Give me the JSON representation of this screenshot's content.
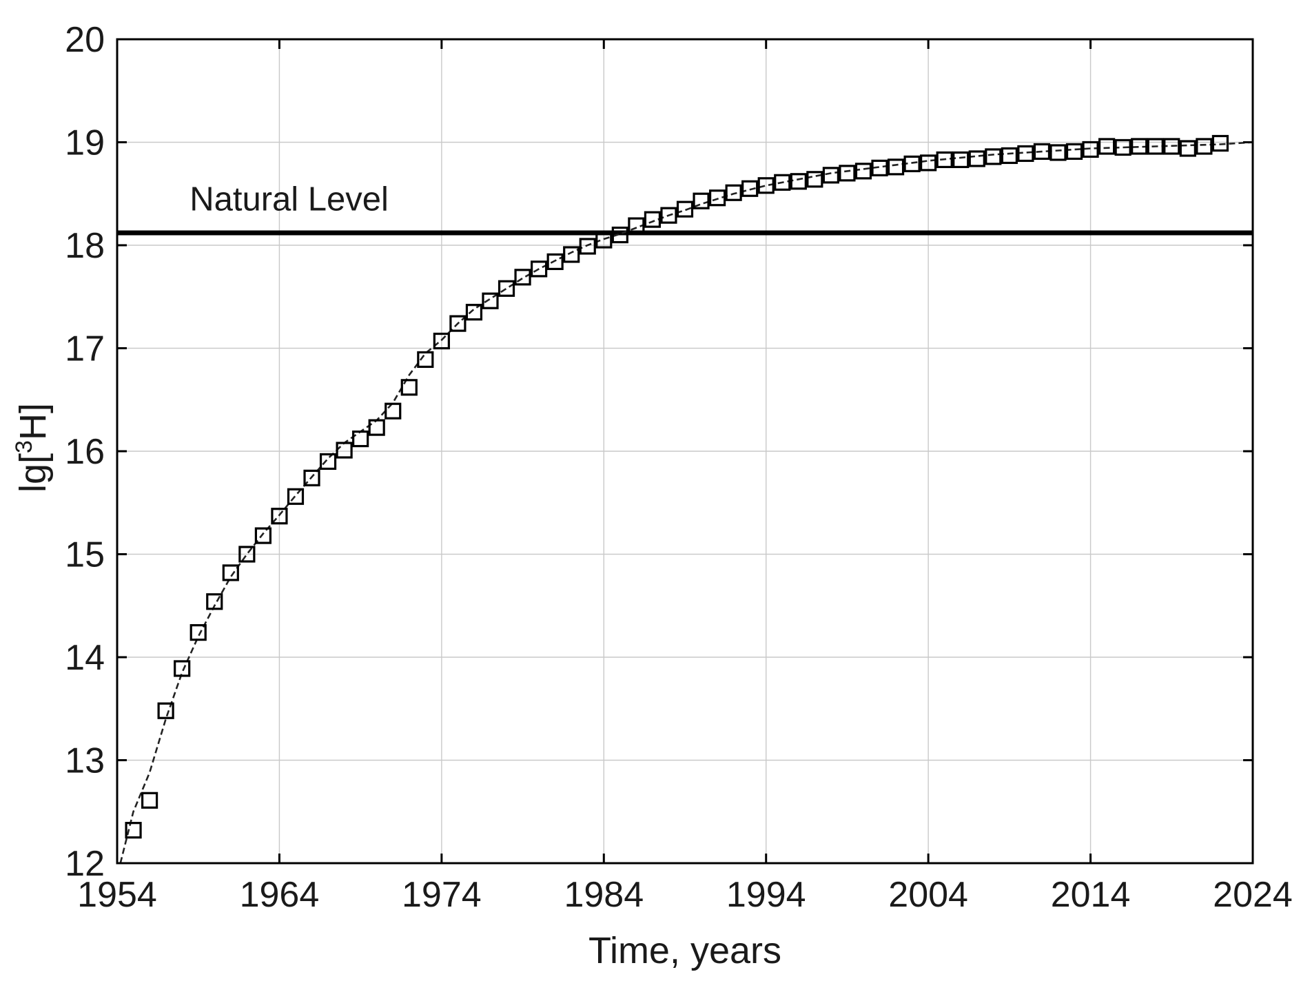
{
  "figure": {
    "background": "#ffffff",
    "annotation": "Natural Level",
    "colors": {
      "background": "#ffffff",
      "axis": "#000000",
      "grid": "#c9c9c9",
      "text": "#1a1a1a",
      "marker": "#000000",
      "fit_line": "#222222",
      "natural_level_line": "#000000"
    }
  },
  "chart_data": {
    "type": "scatter",
    "title": "",
    "xlabel": "Time, years",
    "ylabel": "lg[³H]",
    "ylabel_parts": [
      {
        "text": "lg[",
        "sup": false
      },
      {
        "text": "3",
        "sup": true
      },
      {
        "text": "H]",
        "sup": false
      }
    ],
    "xlim": [
      1954,
      2024
    ],
    "ylim": [
      12,
      20
    ],
    "xticks": [
      1954,
      1964,
      1974,
      1984,
      1994,
      2004,
      2014,
      2024
    ],
    "yticks": [
      12,
      13,
      14,
      15,
      16,
      17,
      18,
      19,
      20
    ],
    "grid": true,
    "legend": "none",
    "annotations": [
      {
        "name": "natural-level",
        "label": "Natural Level",
        "y": 18.12,
        "label_x": 1964.6,
        "label_y": 18.45
      }
    ],
    "series": [
      {
        "name": "tritium-observations",
        "marker": "open-square",
        "points": [
          [
            1955,
            12.32
          ],
          [
            1956,
            12.61
          ],
          [
            1957,
            13.48
          ],
          [
            1958,
            13.89
          ],
          [
            1959,
            14.24
          ],
          [
            1960,
            14.54
          ],
          [
            1961,
            14.82
          ],
          [
            1962,
            15.0
          ],
          [
            1963,
            15.18
          ],
          [
            1964,
            15.37
          ],
          [
            1965,
            15.56
          ],
          [
            1966,
            15.74
          ],
          [
            1967,
            15.9
          ],
          [
            1968,
            16.01
          ],
          [
            1969,
            16.12
          ],
          [
            1970,
            16.23
          ],
          [
            1971,
            16.39
          ],
          [
            1972,
            16.62
          ],
          [
            1973,
            16.89
          ],
          [
            1974,
            17.07
          ],
          [
            1975,
            17.24
          ],
          [
            1976,
            17.35
          ],
          [
            1977,
            17.46
          ],
          [
            1978,
            17.58
          ],
          [
            1979,
            17.69
          ],
          [
            1980,
            17.77
          ],
          [
            1981,
            17.84
          ],
          [
            1982,
            17.91
          ],
          [
            1983,
            17.99
          ],
          [
            1984,
            18.05
          ],
          [
            1985,
            18.1
          ],
          [
            1986,
            18.19
          ],
          [
            1987,
            18.25
          ],
          [
            1988,
            18.29
          ],
          [
            1989,
            18.35
          ],
          [
            1990,
            18.43
          ],
          [
            1991,
            18.46
          ],
          [
            1992,
            18.51
          ],
          [
            1993,
            18.55
          ],
          [
            1994,
            18.58
          ],
          [
            1995,
            18.61
          ],
          [
            1996,
            18.62
          ],
          [
            1997,
            18.64
          ],
          [
            1998,
            18.68
          ],
          [
            1999,
            18.7
          ],
          [
            2000,
            18.72
          ],
          [
            2001,
            18.75
          ],
          [
            2002,
            18.76
          ],
          [
            2003,
            18.79
          ],
          [
            2004,
            18.8
          ],
          [
            2005,
            18.83
          ],
          [
            2006,
            18.83
          ],
          [
            2007,
            18.84
          ],
          [
            2008,
            18.86
          ],
          [
            2009,
            18.87
          ],
          [
            2010,
            18.89
          ],
          [
            2011,
            18.91
          ],
          [
            2012,
            18.9
          ],
          [
            2013,
            18.91
          ],
          [
            2014,
            18.93
          ],
          [
            2015,
            18.96
          ],
          [
            2016,
            18.95
          ],
          [
            2017,
            18.96
          ],
          [
            2018,
            18.96
          ],
          [
            2019,
            18.96
          ],
          [
            2020,
            18.94
          ],
          [
            2021,
            18.96
          ],
          [
            2022,
            18.99
          ]
        ]
      },
      {
        "name": "model-fit-curve",
        "style": "dashed-line",
        "points": [
          [
            1954.2,
            12.0
          ],
          [
            1955,
            12.5
          ],
          [
            1956,
            12.88
          ],
          [
            1957,
            13.4
          ],
          [
            1958,
            13.85
          ],
          [
            1959,
            14.2
          ],
          [
            1960,
            14.5
          ],
          [
            1961,
            14.78
          ],
          [
            1962,
            15.0
          ],
          [
            1963,
            15.2
          ],
          [
            1964,
            15.38
          ],
          [
            1965,
            15.57
          ],
          [
            1966,
            15.75
          ],
          [
            1967,
            15.93
          ],
          [
            1968,
            16.08
          ],
          [
            1969,
            16.19
          ],
          [
            1970,
            16.3
          ],
          [
            1971,
            16.47
          ],
          [
            1972,
            16.74
          ],
          [
            1973,
            16.95
          ],
          [
            1974,
            17.08
          ],
          [
            1975,
            17.24
          ],
          [
            1976,
            17.38
          ],
          [
            1977,
            17.48
          ],
          [
            1978,
            17.58
          ],
          [
            1979,
            17.68
          ],
          [
            1980,
            17.77
          ],
          [
            1981,
            17.85
          ],
          [
            1982,
            17.93
          ],
          [
            1983,
            18.0
          ],
          [
            1984,
            18.06
          ],
          [
            1985,
            18.11
          ],
          [
            1986,
            18.17
          ],
          [
            1987,
            18.23
          ],
          [
            1988,
            18.29
          ],
          [
            1989,
            18.34
          ],
          [
            1990,
            18.4
          ],
          [
            1992,
            18.5
          ],
          [
            1994,
            18.58
          ],
          [
            1996,
            18.64
          ],
          [
            1998,
            18.7
          ],
          [
            2000,
            18.74
          ],
          [
            2002,
            18.78
          ],
          [
            2004,
            18.82
          ],
          [
            2006,
            18.85
          ],
          [
            2008,
            18.88
          ],
          [
            2010,
            18.9
          ],
          [
            2012,
            18.92
          ],
          [
            2014,
            18.94
          ],
          [
            2016,
            18.95
          ],
          [
            2018,
            18.96
          ],
          [
            2020,
            18.97
          ],
          [
            2022,
            18.98
          ],
          [
            2024,
            19.0
          ]
        ]
      }
    ]
  }
}
